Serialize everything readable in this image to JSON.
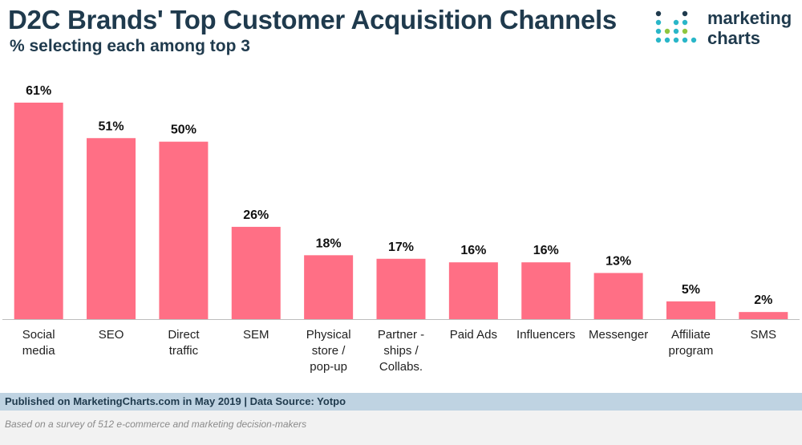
{
  "header": {
    "title": "D2C Brands' Top Customer Acquisition Channels",
    "subtitle": "% selecting each among top 3"
  },
  "logo": {
    "line1": "marketing",
    "line2": "charts"
  },
  "colors": {
    "bar": "#ff6f85",
    "title": "#1f3a4d",
    "axis": "#bdbdbd",
    "footer_bg": "#bfd3e2",
    "note_bg": "#f2f2f2",
    "dot_dark": "#1f3a4d",
    "dot_teal": "#29b6c8",
    "dot_green": "#8ec63f"
  },
  "chart_data": {
    "type": "bar",
    "title": "D2C Brands' Top Customer Acquisition Channels",
    "subtitle": "% selecting each among top 3",
    "categories": [
      [
        "Social",
        "media"
      ],
      [
        "SEO"
      ],
      [
        "Direct",
        "traffic"
      ],
      [
        "SEM"
      ],
      [
        "Physical",
        "store /",
        "pop-up"
      ],
      [
        "Partner -",
        "ships /",
        "Collabs."
      ],
      [
        "Paid Ads"
      ],
      [
        "Influencers"
      ],
      [
        "Messenger"
      ],
      [
        "Affiliate",
        "program"
      ],
      [
        "SMS"
      ]
    ],
    "values": [
      61,
      51,
      50,
      26,
      18,
      17,
      16,
      16,
      13,
      5,
      2
    ],
    "value_labels": [
      "61%",
      "51%",
      "50%",
      "26%",
      "18%",
      "17%",
      "16%",
      "16%",
      "13%",
      "5%",
      "2%"
    ],
    "unit": "%",
    "ylim": [
      0,
      61
    ],
    "xlabel": "",
    "ylabel": "",
    "grid": false,
    "legend": "none"
  },
  "footer": {
    "published": "Published on MarketingCharts.com in May 2019 | Data Source: Yotpo",
    "note": "Based on a survey of 512 e-commerce and marketing decision-makers"
  }
}
